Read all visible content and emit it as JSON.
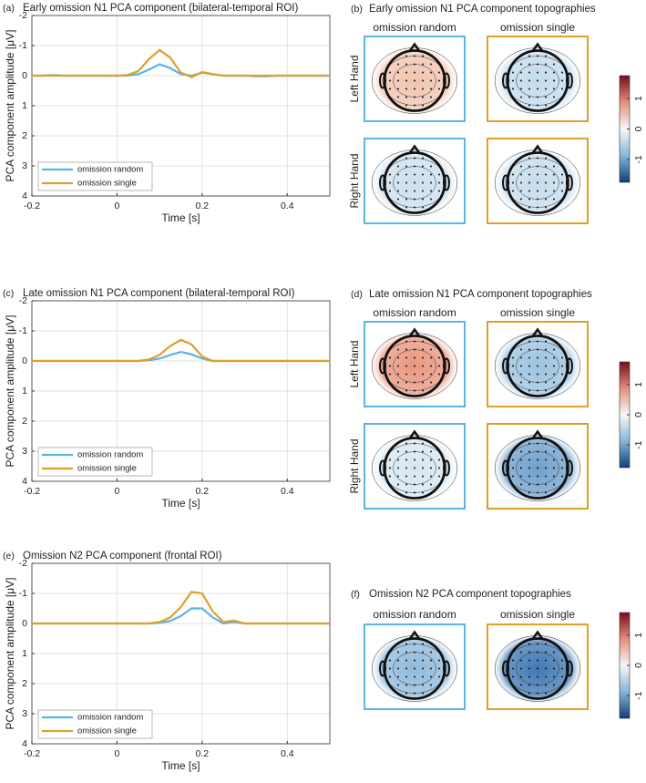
{
  "chart_data": [
    {
      "type": "line",
      "label": "(a)",
      "title": "Early omission N1 PCA component (bilateral-temporal ROI)",
      "xlabel": "Time [s]",
      "ylabel": "PCA component amplitude [μV]",
      "x": [
        -0.2,
        -0.175,
        -0.15,
        -0.125,
        -0.1,
        -0.075,
        -0.05,
        -0.025,
        0,
        0.025,
        0.05,
        0.075,
        0.1,
        0.125,
        0.15,
        0.175,
        0.2,
        0.225,
        0.25,
        0.275,
        0.3,
        0.325,
        0.35,
        0.375,
        0.4,
        0.425,
        0.45,
        0.475,
        0.5
      ],
      "series": [
        {
          "name": "omission random",
          "color": "#5ab4e5",
          "values": [
            0,
            0,
            -0.02,
            0,
            0,
            0,
            0,
            0,
            0,
            0,
            -0.05,
            -0.2,
            -0.38,
            -0.25,
            -0.05,
            0,
            -0.1,
            -0.05,
            0,
            0,
            0,
            0.02,
            0.02,
            0,
            0,
            0,
            0,
            0,
            0
          ]
        },
        {
          "name": "omission single",
          "color": "#e0a028",
          "values": [
            0,
            0,
            0,
            0,
            0,
            0,
            0,
            0,
            0,
            -0.02,
            -0.15,
            -0.55,
            -0.85,
            -0.6,
            -0.1,
            0.05,
            -0.12,
            -0.05,
            0,
            0,
            0,
            0,
            0,
            0,
            0,
            0,
            0,
            0,
            0
          ]
        }
      ],
      "xlim": [
        -0.2,
        0.5
      ],
      "xticks": [
        -0.2,
        0,
        0.2,
        0.4
      ],
      "ylim": [
        -2,
        4
      ],
      "yticks": [
        -2,
        -1,
        0,
        1,
        2,
        3,
        4
      ],
      "y_reversed": true,
      "grid": true,
      "legend": "lower left"
    },
    {
      "type": "line",
      "label": "(c)",
      "title": "Late omission N1 PCA component (bilateral-temporal ROI)",
      "xlabel": "Time [s]",
      "ylabel": "PCA component amplitude [μV]",
      "x": [
        -0.2,
        -0.175,
        -0.15,
        -0.125,
        -0.1,
        -0.075,
        -0.05,
        -0.025,
        0,
        0.025,
        0.05,
        0.075,
        0.1,
        0.125,
        0.15,
        0.175,
        0.2,
        0.225,
        0.25,
        0.275,
        0.3,
        0.325,
        0.35,
        0.375,
        0.4,
        0.425,
        0.45,
        0.475,
        0.5
      ],
      "series": [
        {
          "name": "omission random",
          "color": "#5ab4e5",
          "values": [
            0,
            0,
            0,
            0,
            0,
            0,
            0,
            0,
            0,
            0,
            0,
            -0.02,
            -0.08,
            -0.2,
            -0.3,
            -0.22,
            -0.08,
            0,
            0,
            0,
            0,
            0,
            0,
            0,
            0,
            0,
            0,
            0,
            0
          ]
        },
        {
          "name": "omission single",
          "color": "#e0a028",
          "values": [
            0,
            0,
            0,
            0,
            0,
            0,
            0,
            0,
            0,
            0,
            0,
            -0.05,
            -0.2,
            -0.5,
            -0.7,
            -0.55,
            -0.15,
            0,
            0,
            0,
            0,
            0,
            0,
            0,
            0,
            0,
            0,
            0,
            0
          ]
        }
      ],
      "xlim": [
        -0.2,
        0.5
      ],
      "xticks": [
        -0.2,
        0,
        0.2,
        0.4
      ],
      "ylim": [
        -2,
        4
      ],
      "yticks": [
        -2,
        -1,
        0,
        1,
        2,
        3,
        4
      ],
      "y_reversed": true,
      "grid": true,
      "legend": "lower left"
    },
    {
      "type": "line",
      "label": "(e)",
      "title": "Omission N2 PCA component (frontal ROI)",
      "xlabel": "Time [s]",
      "ylabel": "PCA component amplitude [μV]",
      "x": [
        -0.2,
        -0.175,
        -0.15,
        -0.125,
        -0.1,
        -0.075,
        -0.05,
        -0.025,
        0,
        0.025,
        0.05,
        0.075,
        0.1,
        0.125,
        0.15,
        0.175,
        0.2,
        0.225,
        0.25,
        0.275,
        0.3,
        0.325,
        0.35,
        0.375,
        0.4,
        0.425,
        0.45,
        0.475,
        0.5
      ],
      "series": [
        {
          "name": "omission random",
          "color": "#5ab4e5",
          "values": [
            0,
            0,
            0,
            0,
            0,
            0,
            0,
            0,
            0,
            0,
            0,
            0,
            -0.02,
            -0.08,
            -0.25,
            -0.5,
            -0.5,
            -0.2,
            0,
            -0.05,
            0,
            0,
            0,
            0,
            0,
            0,
            0,
            0,
            0
          ]
        },
        {
          "name": "omission single",
          "color": "#e0a028",
          "values": [
            0,
            0,
            0,
            0,
            0,
            0,
            0,
            0,
            0,
            0,
            0,
            0,
            -0.05,
            -0.2,
            -0.55,
            -1.05,
            -1.0,
            -0.4,
            -0.05,
            -0.1,
            0,
            0,
            0,
            0,
            0,
            0,
            0,
            0,
            0
          ]
        }
      ],
      "xlim": [
        -0.2,
        0.5
      ],
      "xticks": [
        -0.2,
        0,
        0.2,
        0.4
      ],
      "ylim": [
        -2,
        4
      ],
      "yticks": [
        -2,
        -1,
        0,
        1,
        2,
        3,
        4
      ],
      "y_reversed": true,
      "grid": true,
      "legend": "lower left"
    }
  ],
  "topographies": [
    {
      "label": "(b)",
      "title": "Early omission N1 PCA component topographies",
      "columns": [
        "omission random",
        "omission single"
      ],
      "rows": [
        "Left Hand",
        "Right Hand"
      ],
      "colorbar": {
        "lim": [
          -1.75,
          1.75
        ],
        "ticks": [
          1,
          0,
          -1
        ]
      }
    },
    {
      "label": "(d)",
      "title": "Late  omission N1 PCA component topographies",
      "columns": [
        "omission random",
        "omission single"
      ],
      "rows": [
        "Left Hand",
        "Right Hand"
      ],
      "colorbar": {
        "lim": [
          -1.75,
          1.75
        ],
        "ticks": [
          1,
          0,
          -1
        ]
      }
    },
    {
      "label": "(f)",
      "title": "Omission N2 PCA component topographies",
      "columns": [
        "omission random",
        "omission single"
      ],
      "colorbar": {
        "lim": [
          -1.75,
          1.75
        ],
        "ticks": [
          1,
          0,
          -1
        ]
      }
    }
  ]
}
